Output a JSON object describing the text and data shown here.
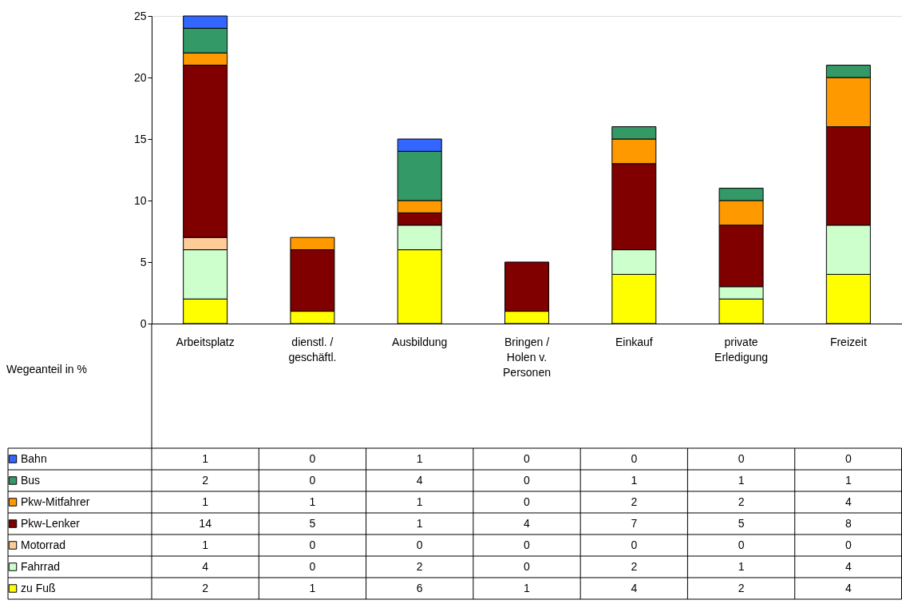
{
  "chart_data": {
    "type": "bar",
    "stacked": true,
    "ylabel": "Wegeanteil in %",
    "data_labels": true,
    "categories": [
      "Arbeitsplatz",
      "dienstl. /\ngeschäftl.",
      "Ausbildung",
      "Bringen /\nHolen v.\nPersonen",
      "Einkauf",
      "private\nErledigung",
      "Freizeit"
    ],
    "legend": "bottom left",
    "ylim": [
      0,
      25
    ],
    "yticks": [
      0,
      5,
      10,
      15,
      20,
      25
    ],
    "grid": false,
    "series": [
      {
        "name": "zu Fuß",
        "color": "#ffff00",
        "values": [
          2,
          1,
          6,
          1,
          4,
          2,
          4
        ]
      },
      {
        "name": "Fahrrad",
        "color": "#ccffcc",
        "values": [
          4,
          0,
          2,
          0,
          2,
          1,
          4
        ]
      },
      {
        "name": "Motorrad",
        "color": "#ffcc99",
        "values": [
          1,
          0,
          0,
          0,
          0,
          0,
          0
        ]
      },
      {
        "name": "Pkw-Lenker",
        "color": "#800000",
        "values": [
          14,
          5,
          1,
          4,
          7,
          5,
          8
        ]
      },
      {
        "name": "Pkw-Mitfahrer",
        "color": "#ff9900",
        "values": [
          1,
          1,
          1,
          0,
          2,
          2,
          4
        ]
      },
      {
        "name": "Bus",
        "color": "#339966",
        "values": [
          2,
          0,
          4,
          0,
          1,
          1,
          1
        ]
      },
      {
        "name": "Bahn",
        "color": "#3366ff",
        "values": [
          1,
          0,
          1,
          0,
          0,
          0,
          0
        ]
      }
    ]
  }
}
